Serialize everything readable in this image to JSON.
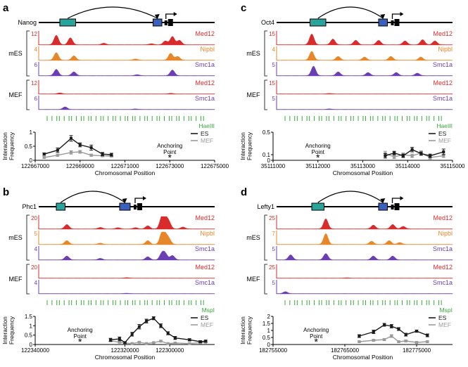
{
  "figure": {
    "colors": {
      "med12": "#d92b2b",
      "nipbl": "#e8862a",
      "smc1a": "#6b3fb3",
      "site": "#39a83a",
      "enhancer": "#2aa39b",
      "promoter": "#3b5fbd",
      "es": "#1a1a1a",
      "mef": "#9a9a9a"
    },
    "panels": [
      {
        "letter": "a",
        "gene": "Nanog",
        "tracks": [
          {
            "group": "mES",
            "label": "Med12",
            "scale": "12",
            "color": "med12",
            "peaks": [
              [
                0.1,
                0.75
              ],
              [
                0.18,
                0.55
              ],
              [
                0.37,
                0.12
              ],
              [
                0.64,
                0.08
              ],
              [
                0.72,
                0.3
              ],
              [
                0.76,
                0.65
              ],
              [
                0.8,
                0.35
              ]
            ]
          },
          {
            "group": "mES",
            "label": "Nipbl",
            "scale": "4",
            "color": "nipbl",
            "peaks": [
              [
                0.1,
                0.6
              ],
              [
                0.2,
                0.35
              ],
              [
                0.55,
                0.1
              ],
              [
                0.75,
                0.55
              ],
              [
                0.79,
                0.3
              ]
            ]
          },
          {
            "group": "mES",
            "label": "Smc1a",
            "scale": "6",
            "color": "smc1a",
            "peaks": [
              [
                0.1,
                0.5
              ],
              [
                0.2,
                0.3
              ],
              [
                0.56,
                0.08
              ],
              [
                0.76,
                0.45
              ]
            ]
          },
          {
            "group": "MEF",
            "label": "Med12",
            "scale": "12",
            "color": "med12",
            "peaks": [
              [
                0.12,
                0.08
              ],
              [
                0.75,
                0.05
              ]
            ]
          },
          {
            "group": "MEF",
            "label": "Smc1a",
            "scale": "6",
            "color": "smc1a",
            "peaks": [
              [
                0.15,
                0.2
              ],
              [
                0.55,
                0.04
              ]
            ]
          }
        ],
        "enzyme": "HaeIII",
        "anchor": "Anchoring\nPoint",
        "chart_data": {
          "type": "line",
          "xlabel": "Chromosomal Position",
          "ylabel": "Interaction\nFrequency",
          "xlim": [
            122667000,
            122675000
          ],
          "ylim": [
            0,
            1
          ],
          "yticks": [
            0,
            0.5,
            1
          ],
          "xticks": [
            122667000,
            122669000,
            122671000,
            122673000,
            122675000
          ],
          "xticklabels": [
            "122667000",
            "122669000",
            "122671000",
            "122673000",
            "122675000"
          ],
          "anchor_x": 122673000,
          "series": [
            {
              "name": "ES",
              "color": "es",
              "x": [
                122667400,
                122668000,
                122668600,
                122669000,
                122669500,
                122670000,
                122670400
              ],
              "y": [
                0.22,
                0.36,
                0.78,
                0.55,
                0.45,
                0.22,
                0.2
              ],
              "err": [
                0.04,
                0.08,
                0.1,
                0.07,
                0.09,
                0.06,
                0.05
              ]
            },
            {
              "name": "MEF",
              "color": "mef",
              "x": [
                122667400,
                122668000,
                122668600,
                122669000,
                122669500,
                122670000,
                122670400
              ],
              "y": [
                0.1,
                0.18,
                0.28,
                0.3,
                0.18,
                0.16,
                0.15
              ],
              "err": [
                0.03,
                0.04,
                0.06,
                0.05,
                0.04,
                0.03,
                0.03
              ]
            }
          ]
        }
      },
      {
        "letter": "c",
        "gene": "Oct4",
        "tracks": [
          {
            "group": "mES",
            "label": "Med12",
            "scale": "15",
            "color": "med12",
            "peaks": [
              [
                0.2,
                0.85
              ],
              [
                0.32,
                0.45
              ],
              [
                0.45,
                0.35
              ],
              [
                0.58,
                0.35
              ],
              [
                0.73,
                0.3
              ],
              [
                0.83,
                0.4
              ],
              [
                0.9,
                0.3
              ]
            ]
          },
          {
            "group": "mES",
            "label": "Nipbl",
            "scale": "4",
            "color": "nipbl",
            "peaks": [
              [
                0.2,
                0.7
              ],
              [
                0.35,
                0.3
              ],
              [
                0.5,
                0.25
              ],
              [
                0.65,
                0.3
              ],
              [
                0.82,
                0.25
              ]
            ]
          },
          {
            "group": "mES",
            "label": "Smc1a",
            "scale": "5",
            "color": "smc1a",
            "peaks": [
              [
                0.21,
                0.75
              ],
              [
                0.35,
                0.3
              ],
              [
                0.52,
                0.25
              ],
              [
                0.68,
                0.25
              ],
              [
                0.8,
                0.2
              ]
            ]
          },
          {
            "group": "MEF",
            "label": "Med12",
            "scale": "15",
            "color": "med12",
            "peaks": [
              [
                0.3,
                0.04
              ]
            ]
          },
          {
            "group": "MEF",
            "label": "Smc1a",
            "scale": "5",
            "color": "smc1a",
            "peaks": [
              [
                0.3,
                0.04
              ]
            ]
          }
        ],
        "enzyme": "HaeIII",
        "anchor": "Anchoring\nPoint",
        "chart_data": {
          "type": "line",
          "xlabel": "Chromosomal Position",
          "ylabel": "Interaction\nFrequency",
          "xlim": [
            35111000,
            35115000
          ],
          "ylim": [
            0,
            0.5
          ],
          "yticks": [
            0,
            0.1,
            0.5
          ],
          "xticks": [
            35111000,
            35112000,
            35113000,
            35114000,
            35115000
          ],
          "xticklabels": [
            "35111000",
            "35112000",
            "35113000",
            "35114000",
            "35115000"
          ],
          "anchor_x": 35112000,
          "series": [
            {
              "name": "ES",
              "color": "es",
              "x": [
                35113500,
                35113700,
                35113900,
                35114100,
                35114300,
                35114500,
                35114800
              ],
              "y": [
                0.08,
                0.13,
                0.08,
                0.19,
                0.12,
                0.08,
                0.15
              ],
              "err": [
                0.04,
                0.03,
                0.03,
                0.04,
                0.03,
                0.03,
                0.05
              ]
            },
            {
              "name": "MEF",
              "color": "mef",
              "x": [
                35113500,
                35113700,
                35113900,
                35114100,
                35114300,
                35114500,
                35114800
              ],
              "y": [
                0.12,
                0.06,
                0.1,
                0.08,
                0.13,
                0.05,
                0.08
              ],
              "err": [
                0.04,
                0.03,
                0.03,
                0.03,
                0.04,
                0.03,
                0.03
              ]
            }
          ]
        }
      },
      {
        "letter": "b",
        "gene": "Phc1",
        "tracks": [
          {
            "group": "mES",
            "label": "Med12",
            "scale": "20",
            "color": "med12",
            "peaks": [
              [
                0.16,
                0.35
              ],
              [
                0.35,
                0.12
              ],
              [
                0.45,
                0.1
              ],
              [
                0.55,
                0.1
              ],
              [
                0.62,
                0.25
              ],
              [
                0.7,
                0.9
              ],
              [
                0.72,
                0.7
              ],
              [
                0.74,
                0.5
              ],
              [
                0.82,
                0.15
              ]
            ]
          },
          {
            "group": "mES",
            "label": "Nipbl",
            "scale": "5",
            "color": "nipbl",
            "peaks": [
              [
                0.16,
                0.3
              ],
              [
                0.35,
                0.1
              ],
              [
                0.62,
                0.3
              ],
              [
                0.7,
                0.85
              ],
              [
                0.72,
                0.6
              ],
              [
                0.74,
                0.4
              ]
            ]
          },
          {
            "group": "mES",
            "label": "Smc1a",
            "scale": "4",
            "color": "smc1a",
            "peaks": [
              [
                0.16,
                0.3
              ],
              [
                0.35,
                0.12
              ],
              [
                0.62,
                0.25
              ],
              [
                0.7,
                0.5
              ],
              [
                0.72,
                0.45
              ],
              [
                0.76,
                0.35
              ]
            ]
          },
          {
            "group": "MEF",
            "label": "Med12",
            "scale": "20",
            "color": "med12",
            "peaks": [
              [
                0.5,
                0.04
              ]
            ]
          },
          {
            "group": "MEF",
            "label": "Smc1a",
            "scale": "4",
            "color": "smc1a",
            "peaks": [
              [
                0.5,
                0.03
              ]
            ]
          }
        ],
        "enzyme": "MspI",
        "anchor": "Anchoring\nPoint",
        "chart_data": {
          "type": "line",
          "xlabel": "Chromosomal Position",
          "ylabel": "Interaction\nFrequency",
          "xlim": [
            0,
            100
          ],
          "ylim": [
            0,
            1.5
          ],
          "yticks": [
            0,
            0.5,
            1.0,
            1.5
          ],
          "xticks": [
            0,
            50,
            75
          ],
          "xticklabels": [
            "122340000",
            "122320000",
            "122300000"
          ],
          "anchor_x": 25,
          "series": [
            {
              "name": "ES",
              "color": "es",
              "x": [
                42,
                47,
                50,
                54,
                58,
                62,
                66,
                70,
                74,
                78,
                86,
                92,
                95
              ],
              "y": [
                0.25,
                0.3,
                0.1,
                0.55,
                0.95,
                1.25,
                1.4,
                1.0,
                0.6,
                0.35,
                0.25,
                0.15,
                0.18
              ],
              "err": [
                0.08,
                0.1,
                0.05,
                0.1,
                0.12,
                0.1,
                0.08,
                0.1,
                0.08,
                0.08,
                0.06,
                0.05,
                0.05
              ]
            },
            {
              "name": "MEF",
              "color": "mef",
              "x": [
                42,
                47,
                50,
                54,
                58,
                62,
                66,
                70,
                74,
                78,
                86,
                92,
                95
              ],
              "y": [
                0.2,
                0.12,
                0.08,
                0.05,
                0.12,
                0.05,
                0.1,
                0.18,
                0.05,
                0.08,
                0.05,
                0.1,
                0.12
              ],
              "err": [
                0.05,
                0.04,
                0.03,
                0.03,
                0.04,
                0.03,
                0.03,
                0.04,
                0.03,
                0.03,
                0.03,
                0.03,
                0.03
              ]
            }
          ]
        }
      },
      {
        "letter": "d",
        "gene": "Lefty1",
        "tracks": [
          {
            "group": "mES",
            "label": "Med12",
            "scale": "25",
            "color": "med12",
            "peaks": [
              [
                0.28,
                0.8
              ],
              [
                0.55,
                0.3
              ],
              [
                0.66,
                0.35
              ],
              [
                0.72,
                0.2
              ]
            ]
          },
          {
            "group": "mES",
            "label": "Nipbl",
            "scale": "7",
            "color": "nipbl",
            "peaks": [
              [
                0.28,
                0.85
              ],
              [
                0.54,
                0.25
              ],
              [
                0.64,
                0.3
              ],
              [
                0.7,
                0.15
              ]
            ]
          },
          {
            "group": "mES",
            "label": "Smc1a",
            "scale": "5",
            "color": "smc1a",
            "peaks": [
              [
                0.08,
                0.4
              ],
              [
                0.28,
                0.5
              ],
              [
                0.55,
                0.3
              ],
              [
                0.66,
                0.3
              ]
            ]
          },
          {
            "group": "MEF",
            "label": "Med12",
            "scale": "25",
            "color": "med12",
            "peaks": [
              [
                0.4,
                0.03
              ]
            ]
          },
          {
            "group": "MEF",
            "label": "Smc1a",
            "scale": "5",
            "color": "smc1a",
            "peaks": [
              [
                0.05,
                0.15
              ]
            ]
          }
        ],
        "enzyme": "MspI",
        "anchor": "Anchoring\nPoint",
        "chart_data": {
          "type": "line",
          "xlabel": "Chromosomal Position",
          "ylabel": "Interaction\nFrequency",
          "xlim": [
            182755000,
            182780000
          ],
          "ylim": [
            0,
            2.0
          ],
          "yticks": [
            0,
            0.5,
            1.0,
            1.5,
            2.0
          ],
          "xticks": [
            182755000,
            182765000,
            182775000
          ],
          "xticklabels": [
            "182755000",
            "182765000",
            "182775000"
          ],
          "anchor_x": 182761000,
          "series": [
            {
              "name": "ES",
              "color": "es",
              "x": [
                182767000,
                182769000,
                182770500,
                182771500,
                182772500,
                182773500,
                182775000,
                182776500
              ],
              "y": [
                0.6,
                0.9,
                1.4,
                1.3,
                1.1,
                0.7,
                0.95,
                0.65
              ],
              "err": [
                0.1,
                0.12,
                0.1,
                0.12,
                0.1,
                0.1,
                0.08,
                0.1
              ]
            },
            {
              "name": "MEF",
              "color": "mef",
              "x": [
                182767000,
                182769000,
                182770500,
                182771500,
                182772500,
                182773500,
                182775000,
                182776500
              ],
              "y": [
                0.2,
                0.3,
                0.35,
                0.6,
                0.2,
                0.25,
                0.15,
                0.2
              ],
              "err": [
                0.05,
                0.06,
                0.08,
                0.1,
                0.05,
                0.05,
                0.04,
                0.05
              ]
            }
          ]
        }
      }
    ]
  }
}
